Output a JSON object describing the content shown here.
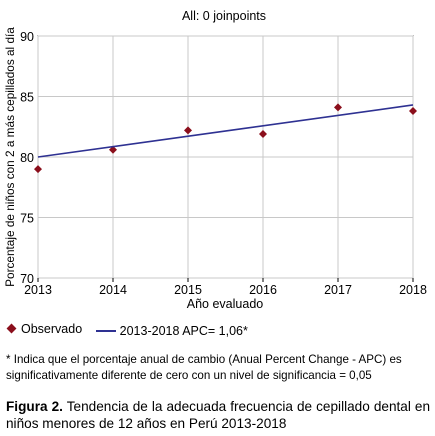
{
  "chart_data": {
    "type": "line",
    "title": "All: 0 joinpoints",
    "xlabel": "Año evaluado",
    "ylabel": "Porcentaje de niños con 2 a más cepillados al día",
    "x_ticks": [
      "2013",
      "2014",
      "2015",
      "2016",
      "2017",
      "2018"
    ],
    "y_ticks": [
      "70",
      "75",
      "80",
      "85",
      "90"
    ],
    "xlim": [
      2013,
      2018
    ],
    "ylim": [
      70,
      90
    ],
    "grid": true,
    "legend_position": "bottom",
    "series": [
      {
        "name": "Observado",
        "kind": "points",
        "color": "#8b0f1c",
        "x": [
          2013,
          2014,
          2015,
          2016,
          2017,
          2018
        ],
        "y": [
          79.0,
          80.6,
          82.2,
          81.9,
          84.1,
          83.8
        ]
      },
      {
        "name": "2013-2018 APC= 1,06*",
        "kind": "line",
        "color": "#2e3192",
        "x": [
          2013,
          2018
        ],
        "y": [
          80.0,
          84.3
        ]
      }
    ]
  },
  "legend": {
    "observed": "Observado",
    "fit": "2013-2018 APC= 1,06*"
  },
  "footnote": "* Indica que el porcentaje anual de cambio (Anual Percent Change - APC) es significativamente diferente de cero con un nivel de significancia = 0,05",
  "caption": {
    "label": "Figura 2.",
    "text": "Tendencia de la adecuada frecuencia de cepillado dental en niños menores de 12 años en Perú 2013-2018"
  }
}
